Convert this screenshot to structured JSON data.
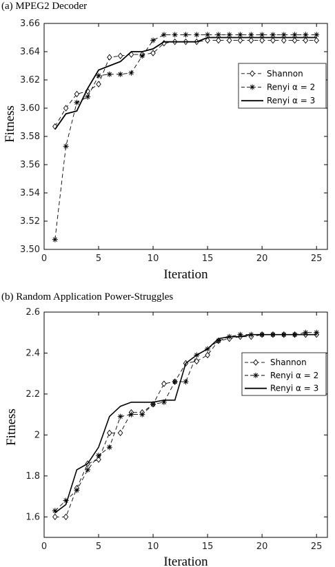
{
  "chart_data": [
    {
      "type": "line",
      "title": "(a) MPEG2 Decoder",
      "xlabel": "Iteration",
      "ylabel": "Fitness",
      "xlim": [
        0,
        26
      ],
      "ylim": [
        3.5,
        3.66
      ],
      "xticks": [
        0,
        5,
        10,
        15,
        20,
        25
      ],
      "yticks": [
        3.5,
        3.52,
        3.54,
        3.56,
        3.58,
        3.6,
        3.62,
        3.64,
        3.66
      ],
      "legend": "right",
      "x": [
        1,
        2,
        3,
        4,
        5,
        6,
        7,
        8,
        9,
        10,
        11,
        12,
        13,
        14,
        15,
        16,
        17,
        18,
        19,
        20,
        21,
        22,
        23,
        24,
        25
      ],
      "series": [
        {
          "name": "Shannon",
          "style": "dashed",
          "marker": "diamond",
          "values": [
            3.587,
            3.6,
            3.61,
            3.612,
            3.617,
            3.636,
            3.637,
            3.638,
            3.638,
            3.639,
            3.646,
            3.647,
            3.647,
            3.647,
            3.648,
            3.648,
            3.648,
            3.648,
            3.648,
            3.648,
            3.648,
            3.648,
            3.648,
            3.648,
            3.648
          ]
        },
        {
          "name": "Renyi α = 2",
          "style": "dashed",
          "marker": "star",
          "values": [
            3.507,
            3.573,
            3.604,
            3.608,
            3.623,
            3.624,
            3.624,
            3.625,
            3.637,
            3.648,
            3.652,
            3.652,
            3.652,
            3.652,
            3.652,
            3.652,
            3.652,
            3.652,
            3.652,
            3.652,
            3.652,
            3.652,
            3.652,
            3.652,
            3.652
          ]
        },
        {
          "name": "Renyi α = 3",
          "style": "solid",
          "marker": "none",
          "values": [
            3.585,
            3.596,
            3.598,
            3.614,
            3.627,
            3.63,
            3.633,
            3.64,
            3.64,
            3.642,
            3.647,
            3.647,
            3.647,
            3.647,
            3.65,
            3.65,
            3.65,
            3.65,
            3.65,
            3.65,
            3.65,
            3.65,
            3.65,
            3.65,
            3.65
          ]
        }
      ]
    },
    {
      "type": "line",
      "title": "(b) Random Application Power-Struggles",
      "xlabel": "Iteration",
      "ylabel": "Fitness",
      "xlim": [
        0,
        26
      ],
      "ylim": [
        1.5,
        2.6
      ],
      "xticks": [
        0,
        5,
        10,
        15,
        20,
        25
      ],
      "yticks": [
        1.6,
        1.8,
        2,
        2.2,
        2.4,
        2.6
      ],
      "legend": "right",
      "x": [
        1,
        2,
        3,
        4,
        5,
        6,
        7,
        8,
        9,
        10,
        11,
        12,
        13,
        14,
        15,
        16,
        17,
        18,
        19,
        20,
        21,
        22,
        23,
        24,
        25
      ],
      "series": [
        {
          "name": "Shannon",
          "style": "dashed",
          "marker": "diamond",
          "values": [
            1.6,
            1.6,
            1.74,
            1.86,
            1.88,
            2.01,
            2.01,
            2.11,
            2.11,
            2.15,
            2.25,
            2.26,
            2.35,
            2.36,
            2.39,
            2.46,
            2.47,
            2.48,
            2.48,
            2.49,
            2.49,
            2.49,
            2.49,
            2.49,
            2.49
          ]
        },
        {
          "name": "Renyi α = 2",
          "style": "dashed",
          "marker": "star",
          "values": [
            1.63,
            1.68,
            1.73,
            1.83,
            1.9,
            1.94,
            2.09,
            2.1,
            2.1,
            2.15,
            2.16,
            2.26,
            2.26,
            2.39,
            2.42,
            2.46,
            2.48,
            2.49,
            2.49,
            2.49,
            2.49,
            2.49,
            2.49,
            2.5,
            2.5
          ]
        },
        {
          "name": "Renyi α = 3",
          "style": "solid",
          "marker": "none",
          "values": [
            1.62,
            1.66,
            1.83,
            1.86,
            1.94,
            2.09,
            2.14,
            2.16,
            2.16,
            2.16,
            2.17,
            2.17,
            2.35,
            2.39,
            2.42,
            2.47,
            2.48,
            2.48,
            2.49,
            2.49,
            2.49,
            2.49,
            2.49,
            2.49,
            2.49
          ]
        }
      ]
    }
  ]
}
